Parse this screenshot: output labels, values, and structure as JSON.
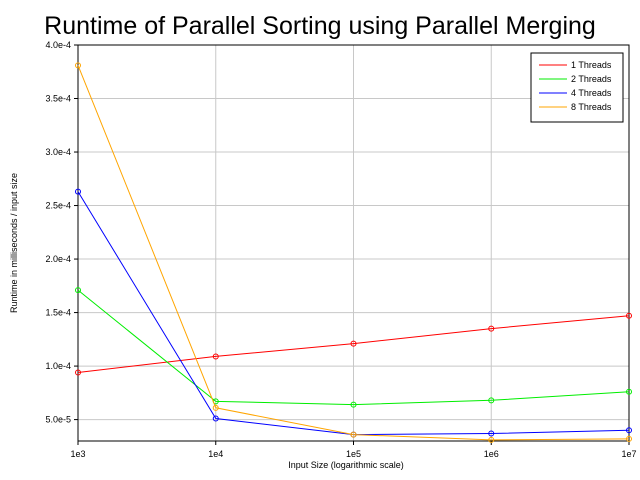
{
  "chart_data": {
    "type": "line",
    "title": "Runtime of Parallel Sorting using Parallel Merging",
    "xlabel": "Input Size (logarithmic scale)",
    "ylabel": "Runtime in milliseconds / input size",
    "x_scale": "log",
    "x": [
      1000,
      10000,
      100000,
      1000000,
      10000000
    ],
    "x_tick_labels": [
      "1e3",
      "1e4",
      "1e5",
      "1e6",
      "1e7"
    ],
    "ylim": [
      3e-05,
      0.0004
    ],
    "y_ticks": [
      5e-05,
      0.0001,
      0.00015,
      0.0002,
      0.00025,
      0.0003,
      0.00035,
      0.0004
    ],
    "y_tick_labels": [
      "5.0e-5",
      "1.0e-4",
      "1.5e-4",
      "2.0e-4",
      "2.5e-4",
      "3.0e-4",
      "3.5e-4",
      "4.0e-4"
    ],
    "grid": true,
    "legend_position": "top-right",
    "series": [
      {
        "name": "1 Threads",
        "color": "#ff0000",
        "values": [
          9.4e-05,
          0.000109,
          0.000121,
          0.000135,
          0.000147
        ]
      },
      {
        "name": "2 Threads",
        "color": "#00ee00",
        "values": [
          0.000171,
          6.7e-05,
          6.4e-05,
          6.8e-05,
          7.6e-05
        ]
      },
      {
        "name": "4 Threads",
        "color": "#0000ff",
        "values": [
          0.000263,
          5.1e-05,
          3.6e-05,
          3.7e-05,
          4e-05
        ]
      },
      {
        "name": "8 Threads",
        "color": "#ffa500",
        "values": [
          0.000381,
          6.1e-05,
          3.6e-05,
          3.1e-05,
          3.2e-05
        ]
      }
    ]
  }
}
